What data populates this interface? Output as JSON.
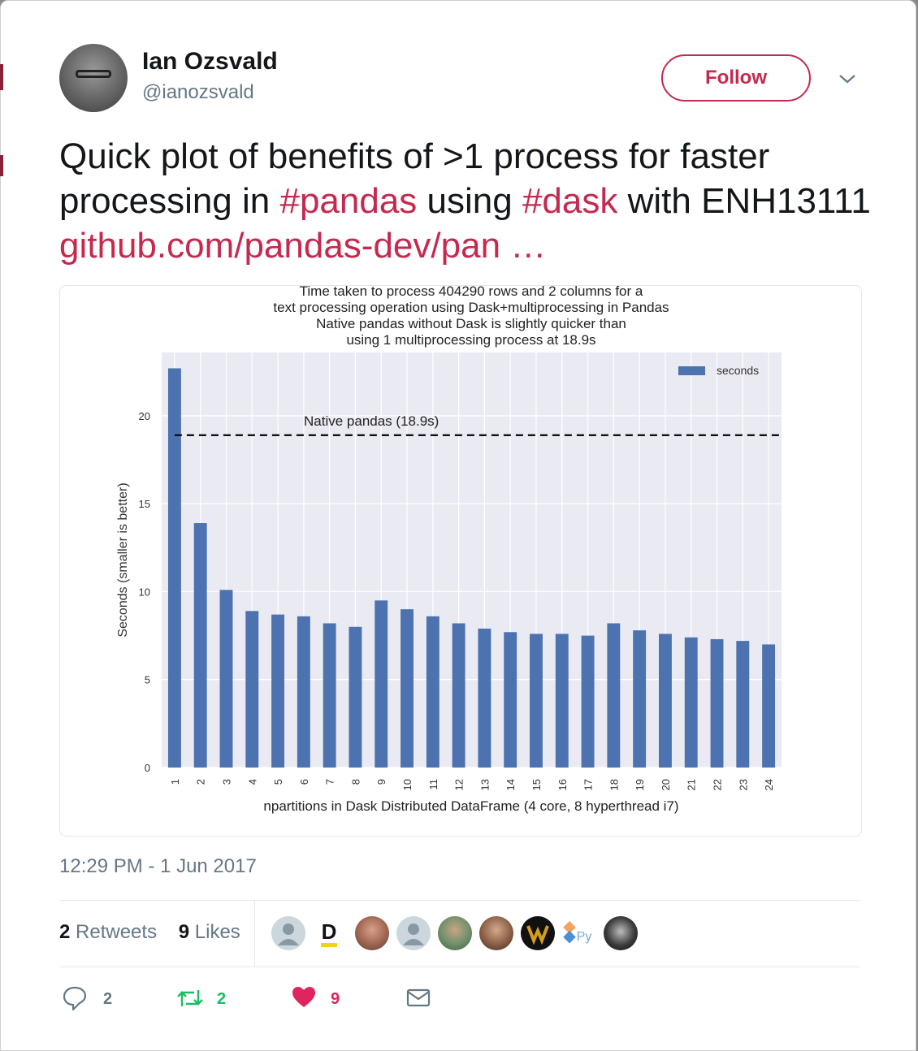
{
  "tweet": {
    "author_name": "Ian Ozsvald",
    "author_handle": "@ianozsvald",
    "follow_label": "Follow",
    "text_parts": [
      {
        "text": "Quick plot of benefits of >1 process for faster processing in ",
        "kind": "plain"
      },
      {
        "text": "#pandas",
        "kind": "tag"
      },
      {
        "text": " using ",
        "kind": "plain"
      },
      {
        "text": "#dask",
        "kind": "tag"
      },
      {
        "text": " with ENH13111 ",
        "kind": "plain"
      },
      {
        "text": "github.com/pandas-dev/pan …",
        "kind": "link"
      }
    ],
    "timestamp": "12:29 PM - 1 Jun 2017",
    "retweets_count": "2",
    "retweets_label": "Retweets",
    "likes_count": "9",
    "likes_label": "Likes",
    "reply_count": "2",
    "retweet_action_count": "2",
    "like_action_count": "9",
    "liker_avatar_glyphs": [
      "D",
      "Py"
    ]
  },
  "colors": {
    "accent": "#c6294f",
    "retweet_green": "#17bf63",
    "like_red": "#e0245e",
    "muted": "#657786",
    "bar_blue": "#4c72b0",
    "plot_bg": "#eaeaf2"
  },
  "chart_data": {
    "type": "bar",
    "title_lines": [
      "Time taken to process 404290 rows and 2 columns for a",
      "text processing operation using Dask+multiprocessing in Pandas",
      "Native pandas without Dask is slightly quicker than",
      "using 1 multiprocessing process at 18.9s"
    ],
    "xlabel": "npartitions in Dask Distributed DataFrame (4 core, 8 hyperthread i7)",
    "ylabel": "Seconds (smaller is better)",
    "categories": [
      "1",
      "2",
      "3",
      "4",
      "5",
      "6",
      "7",
      "8",
      "9",
      "10",
      "11",
      "12",
      "13",
      "14",
      "15",
      "16",
      "17",
      "18",
      "19",
      "20",
      "21",
      "22",
      "23",
      "24"
    ],
    "series": [
      {
        "name": "seconds",
        "values": [
          22.7,
          13.9,
          10.1,
          8.9,
          8.7,
          8.6,
          8.2,
          8.0,
          9.5,
          9.0,
          8.6,
          8.2,
          7.9,
          7.7,
          7.6,
          7.6,
          7.5,
          8.2,
          7.8,
          7.6,
          7.4,
          7.3,
          7.2,
          7.0
        ]
      }
    ],
    "yticks": [
      0,
      5,
      10,
      15,
      20
    ],
    "ylim": [
      0,
      23.6
    ],
    "reference_line": {
      "value": 18.9,
      "label": "Native pandas (18.9s)",
      "style": "dashed"
    },
    "legend": "top-right",
    "grid": true
  }
}
